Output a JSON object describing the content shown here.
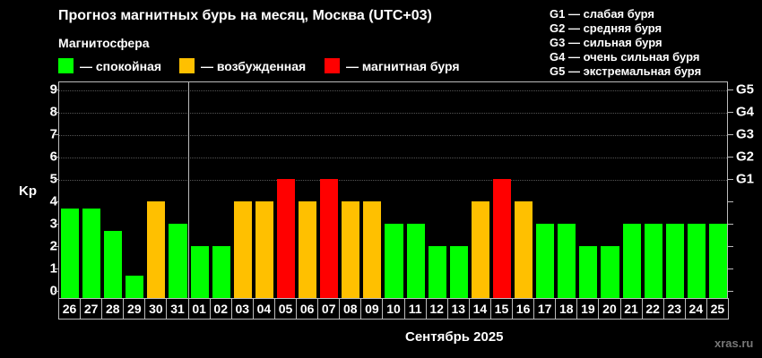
{
  "header": {
    "title": "Прогноз магнитных бурь на месяц, Москва (UTC+03)",
    "magnetosphere_label": "Магнитосфера"
  },
  "legend": [
    {
      "label": "— спокойная",
      "color": "#00ff00"
    },
    {
      "label": "— возбужденная",
      "color": "#ffc000"
    },
    {
      "label": "— магнитная буря",
      "color": "#ff0000"
    }
  ],
  "g_legend": [
    "G1 — слабая буря",
    "G2 — средняя буря",
    "G3 — сильная буря",
    "G4 — очень сильная буря",
    "G5 — экстремальная буря"
  ],
  "axes": {
    "ylabel": "Kp",
    "xlabel": "Сентябрь 2025",
    "yticks": [
      "0",
      "1",
      "2",
      "3",
      "4",
      "5",
      "6",
      "7",
      "8",
      "9"
    ],
    "right_labels": [
      {
        "label": "G1",
        "kp": 5
      },
      {
        "label": "G2",
        "kp": 6
      },
      {
        "label": "G3",
        "kp": 7
      },
      {
        "label": "G4",
        "kp": 8
      },
      {
        "label": "G5",
        "kp": 9
      }
    ]
  },
  "watermark": "xras.ru",
  "chart_data": {
    "type": "bar",
    "title": "Прогноз магнитных бурь на месяц, Москва (UTC+03)",
    "xlabel": "Сентябрь 2025",
    "ylabel": "Kp",
    "ylim": [
      0,
      9
    ],
    "grid": true,
    "legend_position": "top",
    "categories": [
      "26",
      "27",
      "28",
      "29",
      "30",
      "31",
      "01",
      "02",
      "03",
      "04",
      "05",
      "06",
      "07",
      "08",
      "09",
      "10",
      "11",
      "12",
      "13",
      "14",
      "15",
      "16",
      "17",
      "18",
      "19",
      "20",
      "21",
      "22",
      "23",
      "24",
      "25"
    ],
    "values": [
      3.67,
      3.67,
      2.67,
      0.67,
      4,
      3,
      2,
      2,
      4,
      4,
      5,
      4,
      5,
      4,
      4,
      3,
      3,
      2,
      2,
      4,
      5,
      4,
      3,
      3,
      2,
      2,
      3,
      3,
      3,
      3,
      3
    ],
    "status": [
      "calm",
      "calm",
      "calm",
      "calm",
      "excited",
      "calm",
      "calm",
      "calm",
      "excited",
      "excited",
      "storm",
      "excited",
      "storm",
      "excited",
      "excited",
      "calm",
      "calm",
      "calm",
      "calm",
      "excited",
      "storm",
      "excited",
      "calm",
      "calm",
      "calm",
      "calm",
      "calm",
      "calm",
      "calm",
      "calm",
      "calm"
    ],
    "status_colors": {
      "calm": "#00ff00",
      "excited": "#ffc000",
      "storm": "#ff0000"
    },
    "month_separator_after_index": 5
  }
}
